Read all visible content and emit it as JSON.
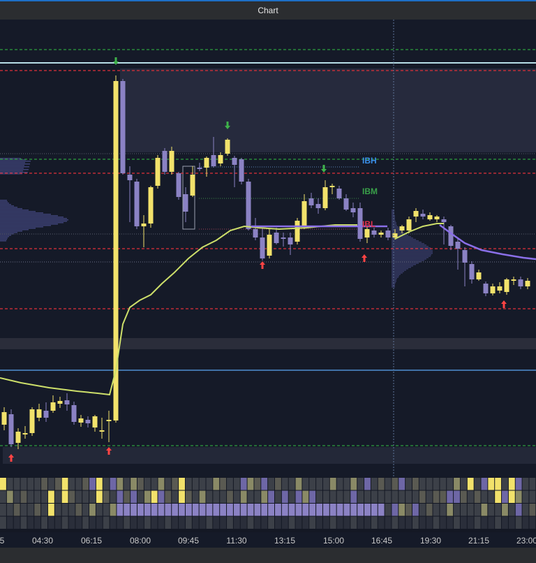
{
  "window": {
    "title": "Chart"
  },
  "colors": {
    "background": "#151a28",
    "bull": "#f2e26b",
    "bear": "#8b82c4",
    "vwap_main": "#cddf6a",
    "vwap_prev": "#8a6fe8",
    "red_level": "#e0313a",
    "green_level": "#2e9e3e",
    "top_line": "#b7dde6",
    "blue_line": "#4f8fd1",
    "ibh": "#3a8fe8",
    "ibm": "#39a049",
    "ibl": "#e0314f",
    "buy_arrow": "#ff4444",
    "sell_arrow": "#3fb24a"
  },
  "chart_data": {
    "type": "candlestick",
    "x_tick_labels": [
      "5",
      "04:30",
      "06:15",
      "08:00",
      "09:45",
      "11:30",
      "13:15",
      "15:00",
      "16:45",
      "19:30",
      "21:15",
      "23:00"
    ],
    "level_labels": {
      "ibh": "IBH",
      "ibm": "IBM",
      "ibl": "IBL"
    },
    "grid": false
  }
}
